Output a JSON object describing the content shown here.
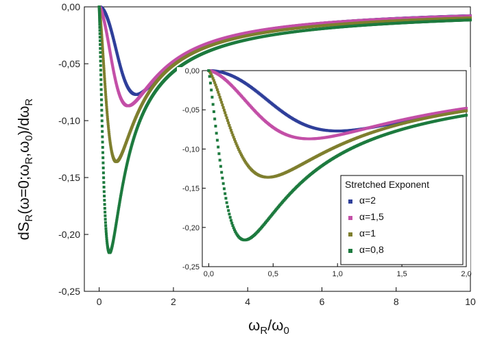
{
  "chart_data": [
    {
      "type": "scatter",
      "title": "",
      "xlabel": "ωR/ω0",
      "ylabel": "dSR(ω=0;ωR,ω0)/dωR",
      "xlim": [
        -0.4,
        10
      ],
      "ylim": [
        -0.25,
        0.0
      ],
      "x_ticks": [
        "0",
        "2",
        "4",
        "6",
        "8",
        "10"
      ],
      "y_ticks": [
        "0,00",
        "-0,05",
        "-0,10",
        "-0,15",
        "-0,20",
        "-0,25"
      ],
      "grid": false,
      "series": [
        {
          "name": "α=2",
          "color": "#2f3f9a",
          "alpha": 2,
          "x": [
            0.0,
            0.25,
            0.5,
            0.75,
            1.0,
            1.25,
            1.5,
            2.0,
            3.0,
            4.0,
            6.0,
            8.0,
            10.0
          ],
          "y": [
            0.0,
            -0.036,
            -0.061,
            -0.074,
            -0.077,
            -0.075,
            -0.069,
            -0.055,
            -0.034,
            -0.022,
            -0.011,
            -0.006,
            -0.004
          ]
        },
        {
          "name": "α=1,5",
          "color": "#c34fa7",
          "alpha": 1.5,
          "x": [
            0.0,
            0.25,
            0.5,
            0.75,
            1.0,
            1.25,
            1.5,
            2.0,
            3.0,
            4.0,
            6.0,
            8.0,
            10.0
          ],
          "y": [
            0.0,
            -0.058,
            -0.082,
            -0.087,
            -0.082,
            -0.075,
            -0.068,
            -0.055,
            -0.035,
            -0.023,
            -0.011,
            -0.006,
            -0.004
          ]
        },
        {
          "name": "α=1",
          "color": "#7f7f2e",
          "alpha": 1,
          "x": [
            0.0,
            0.25,
            0.5,
            0.75,
            1.0,
            1.25,
            1.5,
            2.0,
            3.0,
            4.0,
            6.0,
            8.0,
            10.0
          ],
          "y": [
            0.0,
            -0.111,
            -0.136,
            -0.124,
            -0.102,
            -0.083,
            -0.069,
            -0.051,
            -0.03,
            -0.019,
            -0.009,
            -0.005,
            -0.003
          ]
        },
        {
          "name": "α=0,8",
          "color": "#1d7a3e",
          "alpha": 0.8,
          "x": [
            0.0,
            0.1,
            0.2,
            0.3,
            0.4,
            0.6,
            1.0,
            1.5,
            2.0,
            3.0,
            4.0,
            6.0,
            8.0,
            10.0
          ],
          "y": [
            0.0,
            -0.14,
            -0.205,
            -0.216,
            -0.205,
            -0.16,
            -0.104,
            -0.069,
            -0.048,
            -0.028,
            -0.018,
            -0.009,
            -0.005,
            -0.003
          ]
        }
      ]
    },
    {
      "type": "scatter",
      "title": "",
      "xlabel": "",
      "ylabel": "",
      "xlim": [
        -0.05,
        2.0
      ],
      "ylim": [
        -0.25,
        0.0
      ],
      "x_ticks": [
        "0,0",
        "0,5",
        "1,0",
        "1,5",
        "2,0"
      ],
      "y_ticks": [
        "0,00",
        "-0,05",
        "-0,10",
        "-0,15",
        "-0,20",
        "-0,25"
      ],
      "grid": false,
      "legend": {
        "title": "Stretched Exponent",
        "placement": "bottom-right",
        "entries": [
          "α=2",
          "α=1,5",
          "α=1",
          "α=0,8"
        ]
      },
      "series_ref": "same curves as main plot, x from 0 to 2"
    }
  ]
}
